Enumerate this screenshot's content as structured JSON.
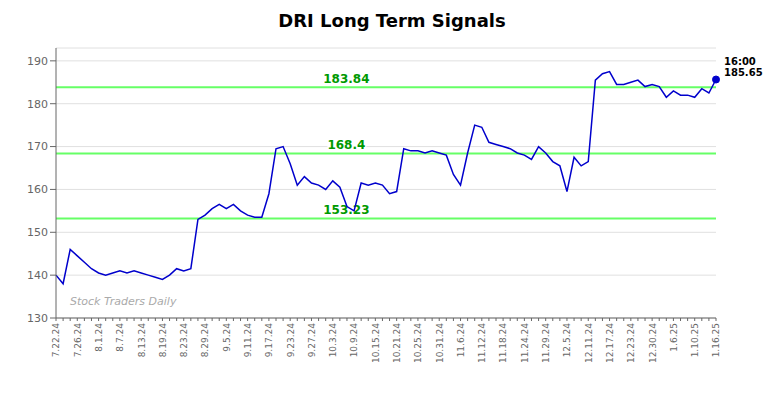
{
  "chart_data": {
    "type": "line",
    "title": "DRI Long Term Signals",
    "color": "#0000cc",
    "grid": true,
    "ylim": [
      130,
      193
    ],
    "yticks": [
      130,
      140,
      150,
      160,
      170,
      180,
      190
    ],
    "categories": [
      "7.22.24",
      null,
      null,
      "7.26.24",
      null,
      null,
      "8.1.24",
      null,
      null,
      "8.7.24",
      null,
      null,
      "8.13.24",
      null,
      null,
      "8.19.24",
      null,
      null,
      "8.23.24",
      null,
      null,
      "8.29.24",
      null,
      null,
      "9.5.24",
      null,
      null,
      "9.11.24",
      null,
      null,
      "9.17.24",
      null,
      null,
      "9.23.24",
      null,
      null,
      "9.27.24",
      null,
      null,
      "10.3.24",
      null,
      null,
      "10.9.24",
      null,
      null,
      "10.15.24",
      null,
      null,
      "10.21.24",
      null,
      null,
      "10.25.24",
      null,
      null,
      "10.31.24",
      null,
      null,
      "11.6.24",
      null,
      null,
      "11.12.24",
      null,
      null,
      "11.18.24",
      null,
      null,
      "11.24.24",
      null,
      null,
      "11.29.24",
      null,
      null,
      "12.5.24",
      null,
      null,
      "12.11.24",
      null,
      null,
      "12.17.24",
      null,
      null,
      "12.23.24",
      null,
      null,
      "12.30.24",
      null,
      null,
      "1.6.25",
      null,
      null,
      "1.10.25",
      null,
      null,
      "1.16.25"
    ],
    "values": [
      140.0,
      138.0,
      146.0,
      144.5,
      143.0,
      141.5,
      140.5,
      140.0,
      140.5,
      141.0,
      140.5,
      141.0,
      140.5,
      140.0,
      139.5,
      139.0,
      140.0,
      141.5,
      141.0,
      141.5,
      153.0,
      154.0,
      155.5,
      156.5,
      155.5,
      156.5,
      155.0,
      154.0,
      153.5,
      153.5,
      159.0,
      169.5,
      170.0,
      166.0,
      161.0,
      163.0,
      161.5,
      161.0,
      160.0,
      162.0,
      160.5,
      156.0,
      155.0,
      161.5,
      161.0,
      161.5,
      161.0,
      159.0,
      159.5,
      169.5,
      169.0,
      169.0,
      168.5,
      169.0,
      168.5,
      168.0,
      163.5,
      161.0,
      168.5,
      175.0,
      174.5,
      171.0,
      170.5,
      170.0,
      169.5,
      168.5,
      168.0,
      167.0,
      170.0,
      168.5,
      166.5,
      165.5,
      159.5,
      167.5,
      165.5,
      166.5,
      185.5,
      187.0,
      187.5,
      184.5,
      184.5,
      185.0,
      185.5,
      184.0,
      184.5,
      184.0,
      181.5,
      183.0,
      182.0,
      182.0,
      181.5,
      183.5,
      182.5,
      185.65
    ],
    "hlines": [
      {
        "value": 153.23,
        "label": "153.23",
        "color": "#66ff66"
      },
      {
        "value": 168.4,
        "label": "168.4",
        "color": "#66ff66"
      },
      {
        "value": 183.84,
        "label": "183.84",
        "color": "#66ff66"
      }
    ],
    "annotations": [
      {
        "text": "Stock Traders Daily"
      },
      {
        "text": "16:00\n185.65",
        "value": 185.65
      }
    ]
  }
}
